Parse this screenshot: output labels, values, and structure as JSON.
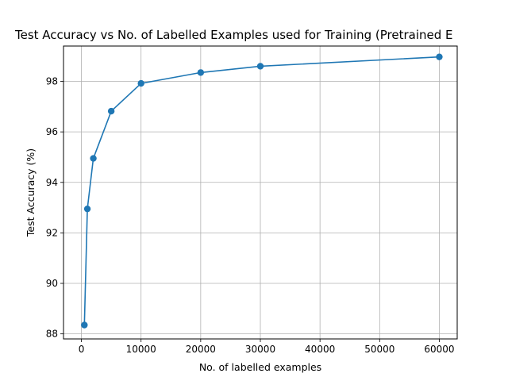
{
  "chart_data": {
    "type": "line",
    "title": "Test Accuracy vs No. of Labelled Examples used for Training (Pretrained E",
    "xlabel": "No. of labelled examples",
    "ylabel": "Test Accuracy (%)",
    "xlim": [
      -3000,
      63000
    ],
    "ylim": [
      87.8,
      99.4
    ],
    "xticks": [
      0,
      10000,
      20000,
      30000,
      40000,
      50000,
      60000
    ],
    "yticks": [
      88,
      90,
      92,
      94,
      96,
      98
    ],
    "grid": true,
    "legend": "none",
    "series": [
      {
        "color": "#1f77b4",
        "marker": "circle",
        "x": [
          500,
          1000,
          2000,
          5000,
          10000,
          20000,
          30000,
          60000
        ],
        "y": [
          88.35,
          92.95,
          94.95,
          96.82,
          97.92,
          98.35,
          98.6,
          98.97
        ]
      }
    ]
  }
}
